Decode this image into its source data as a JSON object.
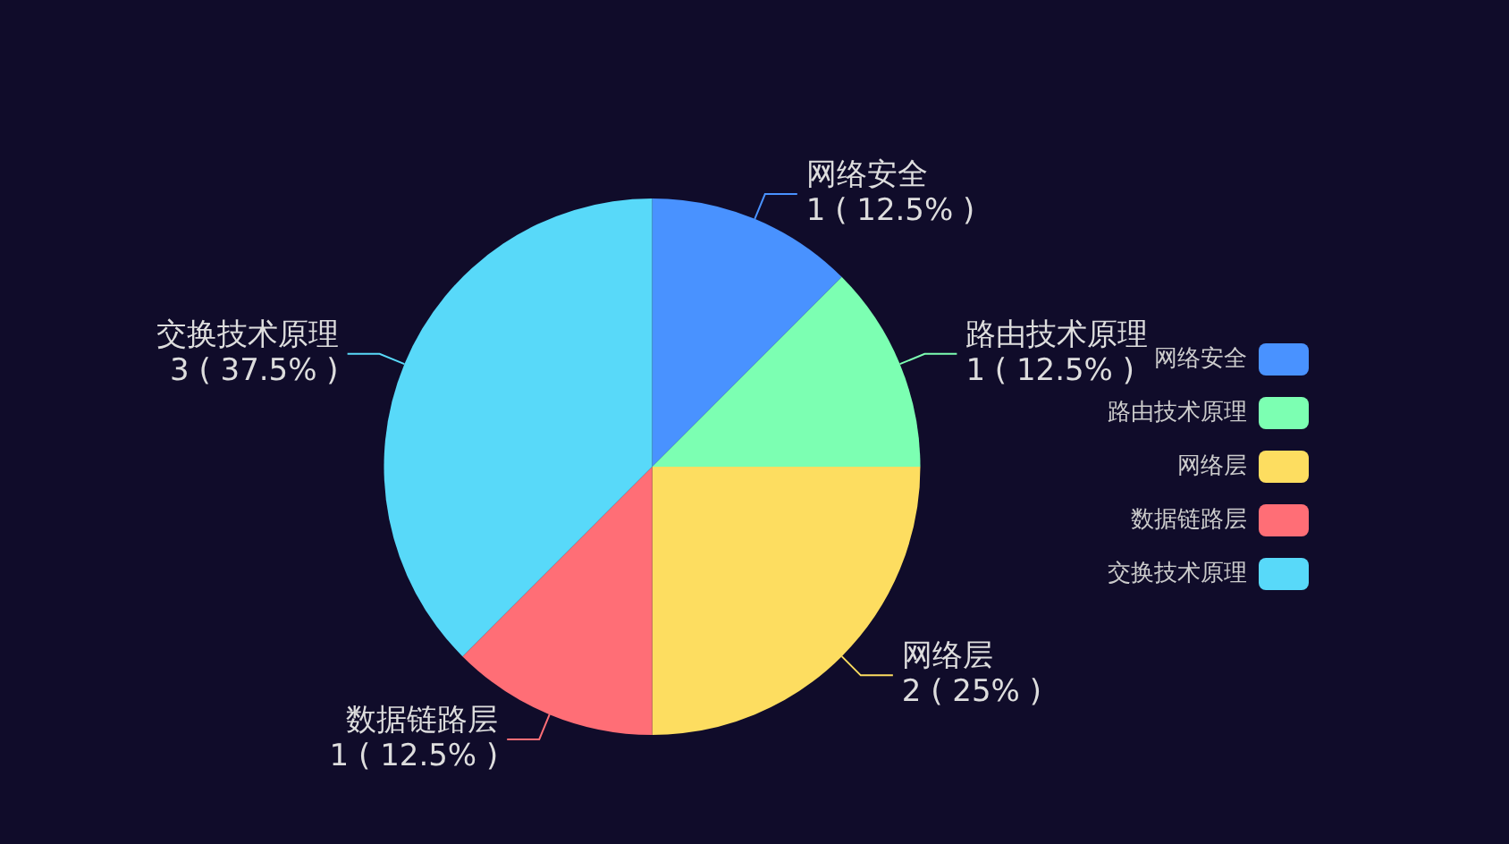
{
  "chart_data": {
    "type": "pie",
    "categories": [
      "网络安全",
      "路由技术原理",
      "网络层",
      "数据链路层",
      "交换技术原理"
    ],
    "values": [
      1,
      1,
      2,
      1,
      3
    ],
    "colors": [
      "#4992ff",
      "#7cffb2",
      "#fddd60",
      "#ff6e76",
      "#58d9f9"
    ],
    "value_labels": [
      "1 ( 12.5% )",
      "1 ( 12.5% )",
      "2 ( 25% )",
      "1 ( 12.5% )",
      "3 ( 37.5% )"
    ],
    "legend": "right"
  }
}
